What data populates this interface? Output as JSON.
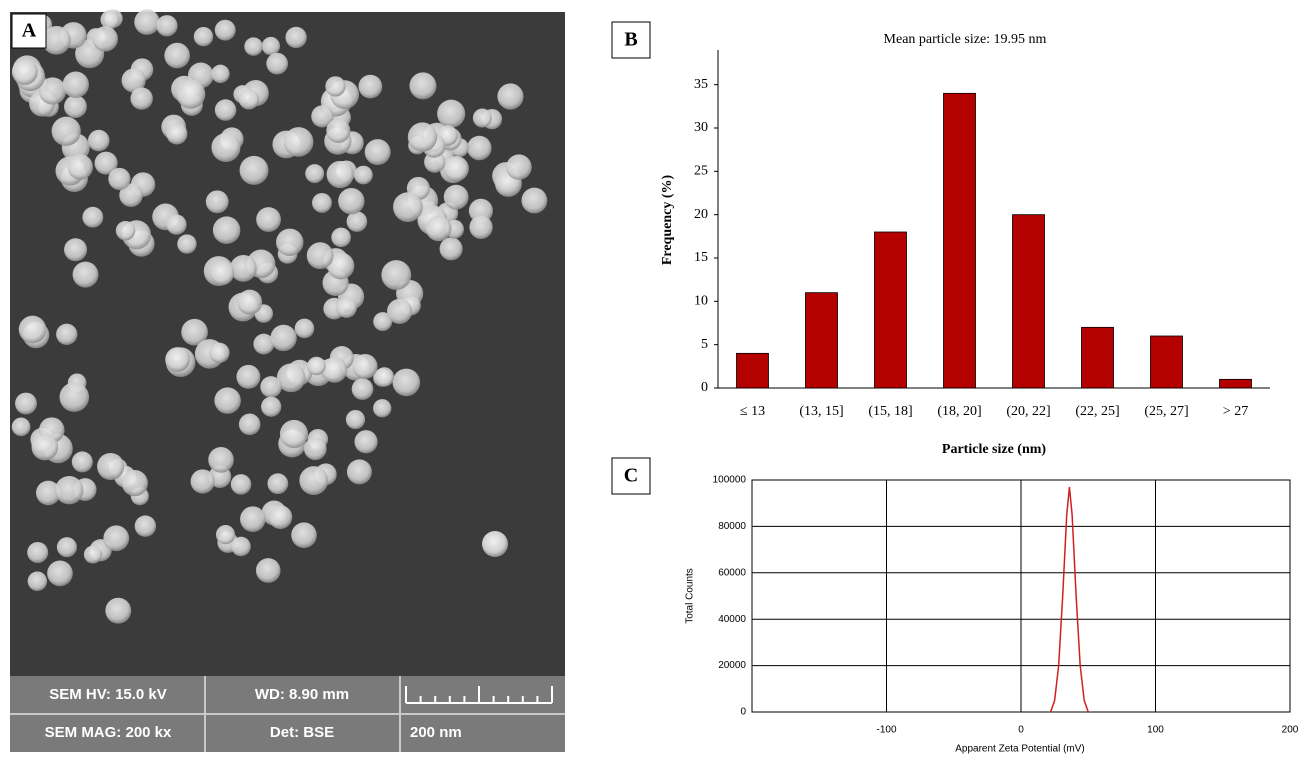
{
  "sem_image": {
    "label": "A",
    "info": [
      "SEM HV: 15.0 kV",
      "WD: 8.90 mm",
      "SEM MAG: 200 kx",
      "Det: BSE",
      "200 nm"
    ]
  },
  "chart_data": [
    {
      "type": "bar",
      "panel": "B",
      "title": "Mean particle size: 19.95 nm",
      "x_label": "Particle size (nm)",
      "y_label": "Frequency (%)",
      "categories": [
        "≤ 13",
        "(13, 15]",
        "(15, 18]",
        "(18, 20]",
        "(20, 22]",
        "(22, 25]",
        "(25, 27]",
        "> 27"
      ],
      "values": [
        4,
        11,
        18,
        34,
        20,
        7,
        6,
        1
      ],
      "color": "#b50000",
      "ylim": [
        0,
        39
      ],
      "yticks": [
        0,
        5,
        10,
        15,
        20,
        25,
        30,
        35
      ],
      "grid": false
    },
    {
      "type": "line",
      "panel": "C",
      "x_label": "Apparent Zeta Potential (mV)",
      "y_label": "Total Counts",
      "x": [
        22,
        25,
        28,
        31,
        34,
        36,
        38,
        41,
        44,
        47,
        50
      ],
      "values": [
        0,
        5000,
        20000,
        50000,
        85000,
        97000,
        85000,
        50000,
        20000,
        5000,
        0
      ],
      "color": "#d02020",
      "xlim": [
        -200,
        200
      ],
      "xticks": [
        -100,
        0,
        100,
        200
      ],
      "ylim": [
        0,
        100000
      ],
      "yticks": [
        0,
        20000,
        40000,
        60000,
        80000,
        100000
      ],
      "grid": true
    }
  ]
}
